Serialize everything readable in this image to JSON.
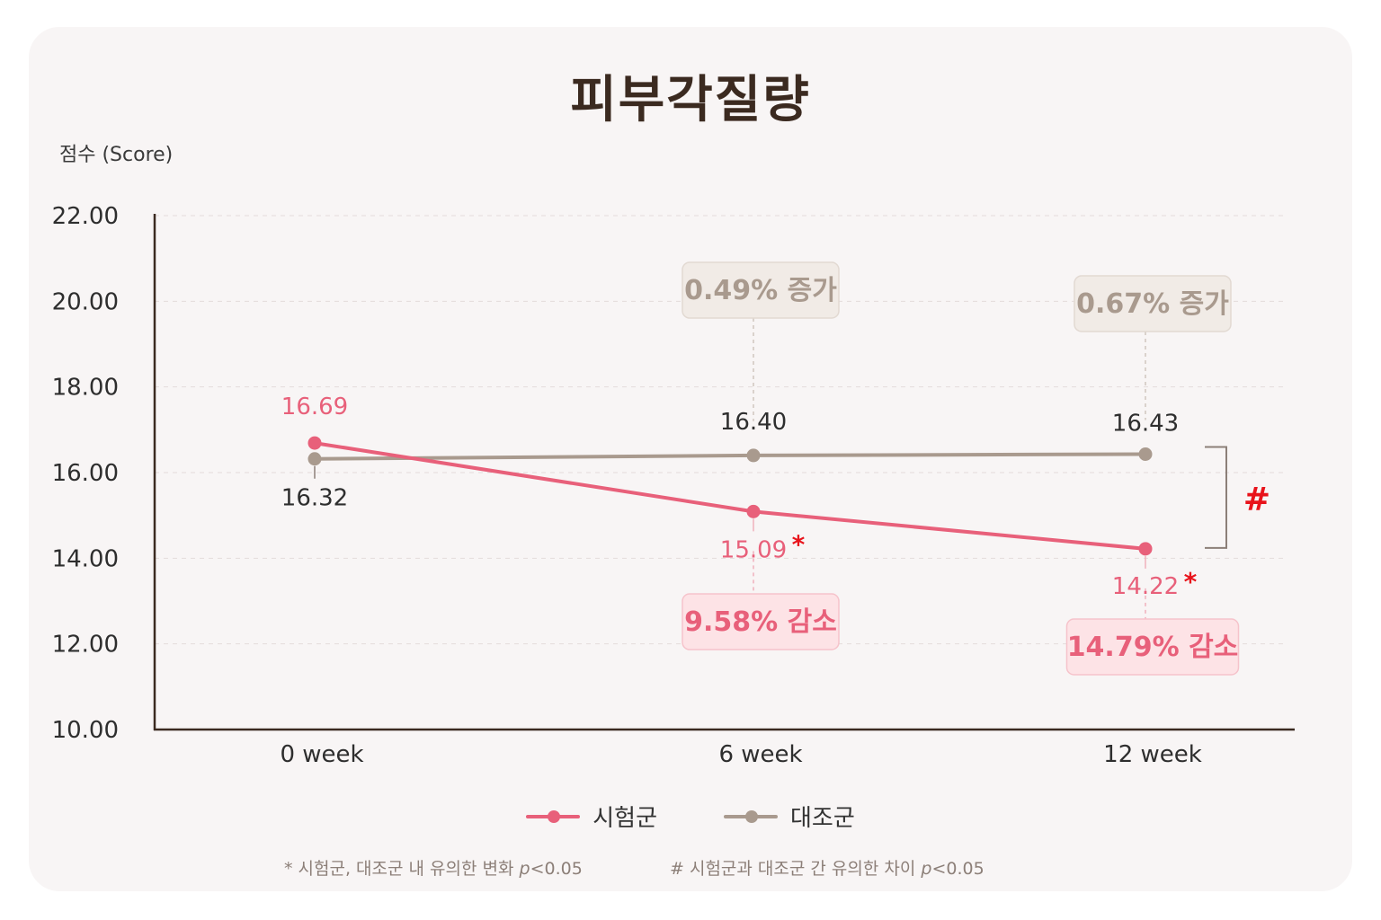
{
  "colors": {
    "test": "#e8607a",
    "control": "#a99a8e",
    "sig": "#e8131b",
    "axis": "#3b2a20"
  },
  "chart_data": {
    "type": "line",
    "title": "피부각질량",
    "ylabel": "점수 (Score)",
    "ylim": [
      10,
      22
    ],
    "yticks": [
      "22.00",
      "20.00",
      "18.00",
      "16.00",
      "14.00",
      "12.00",
      "10.00"
    ],
    "categories": [
      "0 week",
      "6 week",
      "12 week"
    ],
    "series": [
      {
        "name": "시험군",
        "values": [
          16.69,
          15.09,
          14.22
        ],
        "labels": [
          "16.69",
          "15.09",
          "14.22"
        ],
        "changes": [
          "",
          "9.58% 감소",
          "14.79% 감소"
        ],
        "significant": [
          false,
          true,
          true
        ]
      },
      {
        "name": "대조군",
        "values": [
          16.32,
          16.4,
          16.43
        ],
        "labels": [
          "16.32",
          "16.40",
          "16.43"
        ],
        "changes": [
          "",
          "0.49% 증가",
          "0.67% 증가"
        ]
      }
    ],
    "within_group_marker": "*",
    "between_group_marker": "#",
    "grid": true,
    "legend_position": "bottom"
  },
  "footnotes": {
    "within_prefix": "* 시험군,  대조군 내 유의한 변화 ",
    "between_prefix": "# 시험군과 대조군 간 유의한 차이 ",
    "p_label": "p",
    "p_value": "<0.05"
  }
}
